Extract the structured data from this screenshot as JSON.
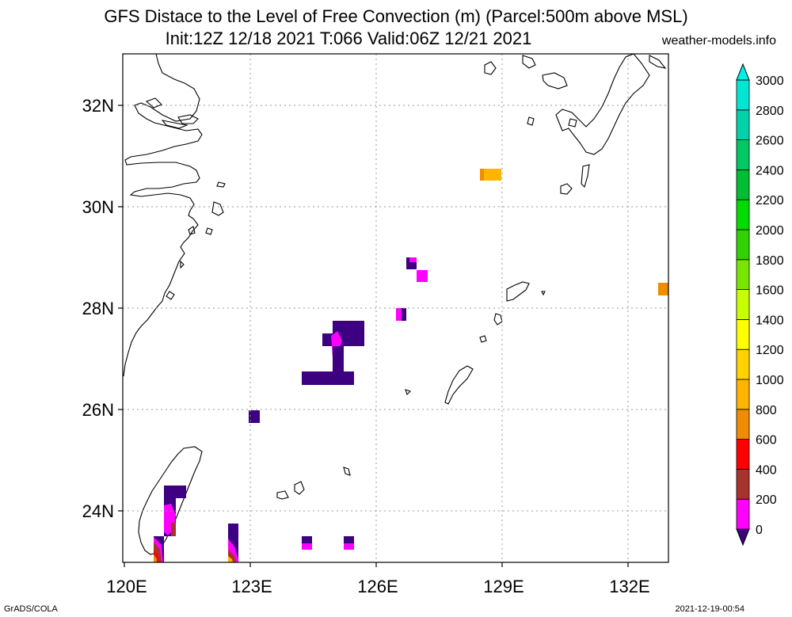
{
  "header": {
    "title_line1": "GFS Distace to the Level of Free Convection (m) (Parcel:500m above MSL)",
    "title_line2": "Init:12Z 12/18 2021 T:066 Valid:06Z 12/21 2021",
    "site": "weather-models.info"
  },
  "footer": {
    "left": "GrADS/COLA",
    "right": "2021-12-19-00:54"
  },
  "map": {
    "lon_labels": [
      "120E",
      "123E",
      "126E",
      "129E",
      "132E"
    ],
    "lat_labels": [
      "32N",
      "30N",
      "28N",
      "26N",
      "24N"
    ]
  },
  "colorbar": {
    "levels": [
      "0",
      "200",
      "400",
      "600",
      "800",
      "1000",
      "1200",
      "1400",
      "1600",
      "1800",
      "2000",
      "2200",
      "2400",
      "2600",
      "2800",
      "3000"
    ],
    "colors": [
      "#3c0080",
      "#ff00ff",
      "#a8322c",
      "#ff0000",
      "#f08c00",
      "#ffb400",
      "#ffd200",
      "#ffff00",
      "#c8ff00",
      "#78e600",
      "#32d200",
      "#00dc00",
      "#00be32",
      "#00c864",
      "#00d2aa",
      "#00e6d2",
      "#00f0e6"
    ]
  }
}
